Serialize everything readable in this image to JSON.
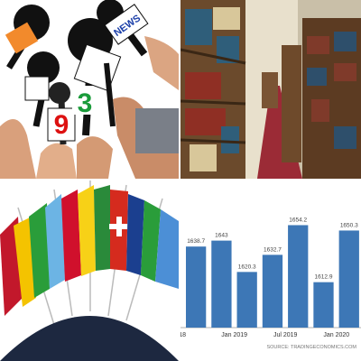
{
  "photos": {
    "mic_labels": [
      "NEWS",
      "3",
      "9"
    ]
  },
  "chart_data": {
    "type": "bar",
    "categories": [
      "18",
      null,
      "Jan 2019",
      null,
      "Jul 2019",
      null,
      "Jan 2020"
    ],
    "values": [
      1638.7,
      1643,
      1620.3,
      1632.7,
      1654.2,
      1612.9,
      1650.3
    ],
    "color": "#3d77b6",
    "ylim": [
      1580,
      1680
    ],
    "source": "SOURCE: TRADINGECONOMICS.COM"
  }
}
